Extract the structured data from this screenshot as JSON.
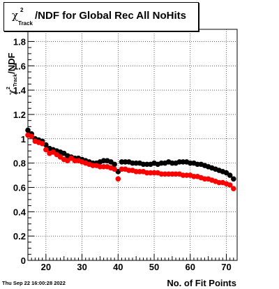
{
  "title": {
    "symbol": "χ",
    "superscript": "2",
    "subscript": "Track",
    "rest": "/NDF for Global Rec All NoHits"
  },
  "date_stamp": "Thu Sep 22 16:00:28 2022",
  "chart_data": {
    "type": "scatter",
    "xlabel": "No. of Fit Points",
    "ylabel": "χ²_Track/NDF",
    "xlim": [
      15,
      73
    ],
    "ylim": [
      0,
      1.9
    ],
    "xticks": [
      20,
      30,
      40,
      50,
      60,
      70
    ],
    "yticks": [
      0,
      0.2,
      0.4,
      0.6,
      0.8,
      1,
      1.2,
      1.4,
      1.6,
      1.8
    ],
    "grid": true,
    "x": [
      15,
      16,
      17,
      18,
      19,
      20,
      21,
      22,
      23,
      24,
      25,
      26,
      27,
      28,
      29,
      30,
      31,
      32,
      33,
      34,
      35,
      36,
      37,
      38,
      39,
      40,
      41,
      42,
      43,
      44,
      45,
      46,
      47,
      48,
      49,
      50,
      51,
      52,
      53,
      54,
      55,
      56,
      57,
      58,
      59,
      60,
      61,
      62,
      63,
      64,
      65,
      66,
      67,
      68,
      69,
      70,
      71,
      72
    ],
    "series": [
      {
        "color": "#000000",
        "values": [
          1.07,
          1.04,
          1.0,
          0.99,
          0.98,
          0.95,
          0.92,
          0.91,
          0.9,
          0.89,
          0.88,
          0.86,
          0.85,
          0.84,
          0.84,
          0.83,
          0.82,
          0.81,
          0.8,
          0.8,
          0.81,
          0.82,
          0.82,
          0.81,
          0.79,
          0.73,
          0.81,
          0.81,
          0.81,
          0.8,
          0.8,
          0.8,
          0.79,
          0.79,
          0.79,
          0.8,
          0.79,
          0.8,
          0.8,
          0.81,
          0.8,
          0.8,
          0.81,
          0.81,
          0.81,
          0.8,
          0.8,
          0.79,
          0.79,
          0.78,
          0.77,
          0.76,
          0.75,
          0.74,
          0.73,
          0.72,
          0.7,
          0.67
        ]
      },
      {
        "color": "#ff0000",
        "values": [
          1.03,
          1.02,
          0.98,
          0.97,
          0.96,
          0.91,
          0.88,
          0.89,
          0.87,
          0.85,
          0.83,
          0.82,
          0.84,
          0.82,
          0.82,
          0.81,
          0.8,
          0.79,
          0.78,
          0.78,
          0.77,
          0.77,
          0.77,
          0.76,
          0.75,
          0.67,
          0.75,
          0.75,
          0.74,
          0.74,
          0.73,
          0.73,
          0.73,
          0.72,
          0.72,
          0.72,
          0.72,
          0.71,
          0.71,
          0.71,
          0.71,
          0.71,
          0.71,
          0.7,
          0.7,
          0.7,
          0.69,
          0.69,
          0.68,
          0.67,
          0.67,
          0.66,
          0.65,
          0.64,
          0.64,
          0.63,
          0.62,
          0.59
        ]
      }
    ]
  }
}
